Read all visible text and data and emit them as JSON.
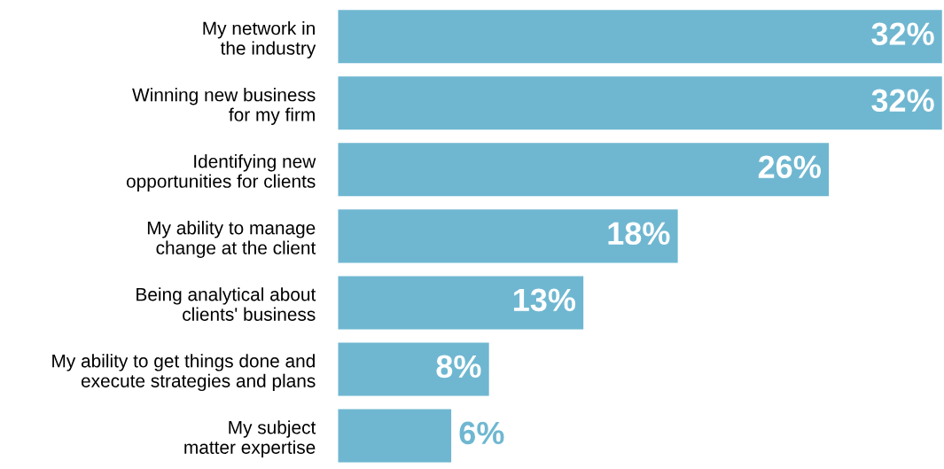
{
  "chart_data": {
    "type": "bar",
    "orientation": "horizontal",
    "categories": [
      "My network in\nthe industry",
      "Winning new business\nfor my firm",
      "Identifying new\nopportunities for clients",
      "My ability to manage\nchange at the client",
      "Being analytical about\nclients' business",
      "My ability to get things done and\nexecute strategies and plans",
      "My subject\nmatter expertise"
    ],
    "values": [
      32,
      32,
      26,
      18,
      13,
      8,
      6
    ],
    "value_labels": [
      "32%",
      "32%",
      "26%",
      "18%",
      "13%",
      "8%",
      "6%"
    ],
    "color": "#6fb7d1",
    "grid": false,
    "legend": false
  }
}
